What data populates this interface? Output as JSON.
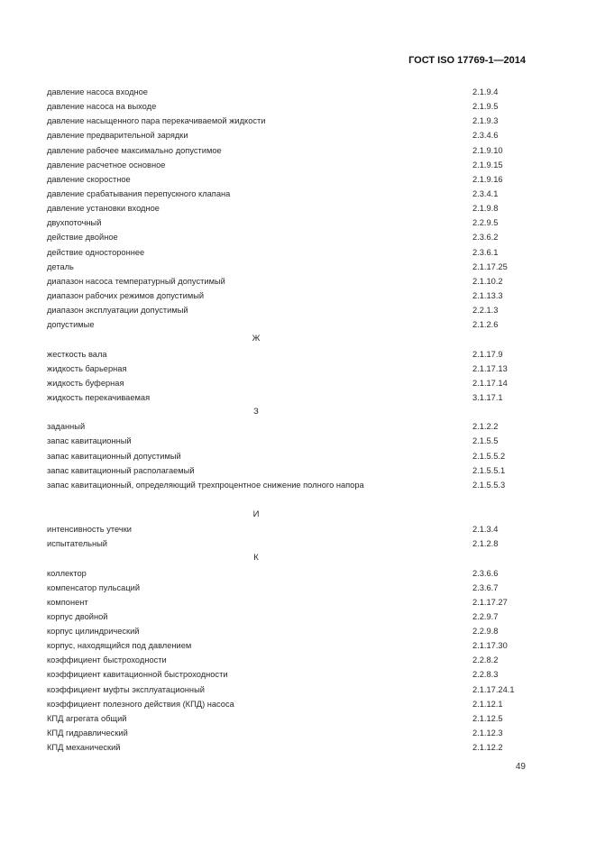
{
  "header": {
    "doc_code": "ГОСТ ISO 17769-1—2014"
  },
  "index": [
    {
      "term": "давление насоса входное",
      "ref": "2.1.9.4"
    },
    {
      "term": "давление насоса на выходе",
      "ref": "2.1.9.5"
    },
    {
      "term": "давление насыщенного пара перекачиваемой жидкости",
      "ref": "2.1.9.3"
    },
    {
      "term": "давление предварительной зарядки",
      "ref": "2.3.4.6"
    },
    {
      "term": "давление рабочее максимально допустимое",
      "ref": "2.1.9.10"
    },
    {
      "term": "давление расчетное основное",
      "ref": "2.1.9.15"
    },
    {
      "term": "давление скоростное",
      "ref": "2.1.9.16"
    },
    {
      "term": "давление срабатывания перепускного клапана",
      "ref": "2.3.4.1"
    },
    {
      "term": "давление установки входное",
      "ref": "2.1.9.8"
    },
    {
      "term": "двухпоточный",
      "ref": "2.2.9.5"
    },
    {
      "term": "действие двойное",
      "ref": "2.3.6.2"
    },
    {
      "term": "действие одностороннее",
      "ref": "2.3.6.1"
    },
    {
      "term": "деталь",
      "ref": "2.1.17.25"
    },
    {
      "term": "диапазон насоса температурный допустимый",
      "ref": "2.1.10.2"
    },
    {
      "term": "диапазон рабочих режимов допустимый",
      "ref": "2.1.13.3"
    },
    {
      "term": "диапазон эксплуатации допустимый",
      "ref": "2.2.1.3"
    },
    {
      "term": "допустимые",
      "ref": "2.1.2.6"
    },
    {
      "letter": "Ж"
    },
    {
      "term": "жесткость вала",
      "ref": "2.1.17.9"
    },
    {
      "term": "жидкость барьерная",
      "ref": "2.1.17.13"
    },
    {
      "term": "жидкость буферная",
      "ref": "2.1.17.14"
    },
    {
      "term": "жидкость перекачиваемая",
      "ref": "3.1.17.1"
    },
    {
      "letter": "З"
    },
    {
      "term": "заданный",
      "ref": "2.1.2.2"
    },
    {
      "term": "запас кавитационный",
      "ref": "2.1.5.5"
    },
    {
      "term": "запас кавитационный допустимый",
      "ref": "2.1.5.5.2"
    },
    {
      "term": "запас кавитационный располагаемый",
      "ref": "2.1.5.5.1"
    },
    {
      "term": "запас кавитационный, определяющий трехпроцентное снижение полного напора",
      "ref": "2.1.5.5.3"
    },
    {
      "gap": true
    },
    {
      "letter": "И"
    },
    {
      "term": "интенсивность утечки",
      "ref": "2.1.3.4"
    },
    {
      "term": "испытательный",
      "ref": "2.1.2.8"
    },
    {
      "letter": "К"
    },
    {
      "term": "коллектор",
      "ref": "2.3.6.6"
    },
    {
      "term": "компенсатор пульсаций",
      "ref": "2.3.6.7"
    },
    {
      "term": "компонент",
      "ref": "2.1.17.27"
    },
    {
      "term": "корпус двойной",
      "ref": "2.2.9.7"
    },
    {
      "term": "корпус цилиндрический",
      "ref": "2.2.9.8"
    },
    {
      "term": "корпус, находящийся под давлением",
      "ref": "2.1.17.30"
    },
    {
      "term": "коэффициент быстроходности",
      "ref": "2.2.8.2"
    },
    {
      "term": "коэффициент кавитационной быстроходности",
      "ref": "2.2.8.3"
    },
    {
      "term": "коэффициент муфты эксплуатационный",
      "ref": "2.1.17.24.1"
    },
    {
      "term": "коэффициент полезного действия (КПД) насоса",
      "ref": "2.1.12.1"
    },
    {
      "term": "КПД агрегата общий",
      "ref": "2.1.12.5"
    },
    {
      "term": "КПД гидравлический",
      "ref": "2.1.12.3"
    },
    {
      "term": "КПД механический",
      "ref": "2.1.12.2"
    }
  ],
  "footer": {
    "page_number": "49"
  }
}
